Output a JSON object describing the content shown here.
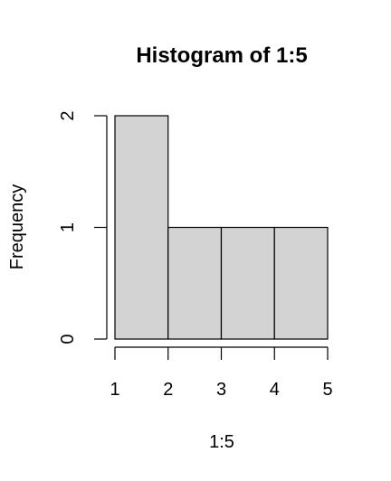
{
  "chart_data": {
    "type": "bar",
    "subtype": "histogram",
    "title": "Histogram of 1:5",
    "xlabel": "1:5",
    "ylabel": "Frequency",
    "bins": [
      {
        "x0": 1,
        "x1": 2,
        "count": 2
      },
      {
        "x0": 2,
        "x1": 3,
        "count": 1
      },
      {
        "x0": 3,
        "x1": 4,
        "count": 1
      },
      {
        "x0": 4,
        "x1": 5,
        "count": 1
      }
    ],
    "xlim": [
      1,
      5
    ],
    "ylim": [
      0,
      2
    ],
    "x_ticks": [
      "1",
      "2",
      "3",
      "4",
      "5"
    ],
    "y_ticks": [
      "0",
      "1",
      "2"
    ],
    "bar_color": "#d3d3d3",
    "edge_color": "#000000",
    "grid": false
  }
}
